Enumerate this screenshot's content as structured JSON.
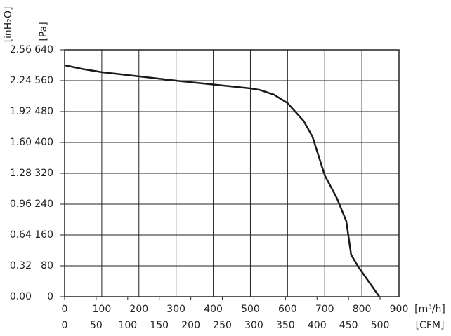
{
  "chart_data": {
    "type": "line",
    "ylabel": "[Pa]",
    "y2label": "[inH₂O]",
    "xlabel": "[m³/h]",
    "x2label": "[CFM]",
    "x": [
      0,
      50,
      100,
      200,
      300,
      400,
      500,
      525,
      563,
      600,
      643,
      667,
      700,
      733,
      758,
      771,
      790,
      847
    ],
    "values": [
      600,
      590,
      582,
      571,
      560,
      550,
      540,
      536,
      524,
      502,
      456,
      415,
      315,
      255,
      196,
      109,
      78,
      0
    ],
    "color": "#1a1a1a",
    "xlim": [
      0,
      900
    ],
    "xticks": [
      0,
      100,
      200,
      300,
      400,
      500,
      600,
      700,
      800,
      900
    ],
    "x2lim": [
      0,
      530
    ],
    "x2ticks": [
      0,
      50,
      100,
      150,
      200,
      250,
      300,
      350,
      400,
      450,
      500
    ],
    "ylim": [
      0,
      640
    ],
    "yticks": [
      0,
      80,
      160,
      240,
      320,
      400,
      480,
      560,
      640
    ],
    "y2lim": [
      0,
      2.56
    ],
    "y2ticks": [
      {
        "value": 0,
        "label": "0.00"
      },
      0.32,
      0.64,
      0.96,
      1.28,
      {
        "value": 1.6,
        "label": "1.60"
      },
      1.92,
      2.24,
      2.56
    ],
    "grid": true
  }
}
